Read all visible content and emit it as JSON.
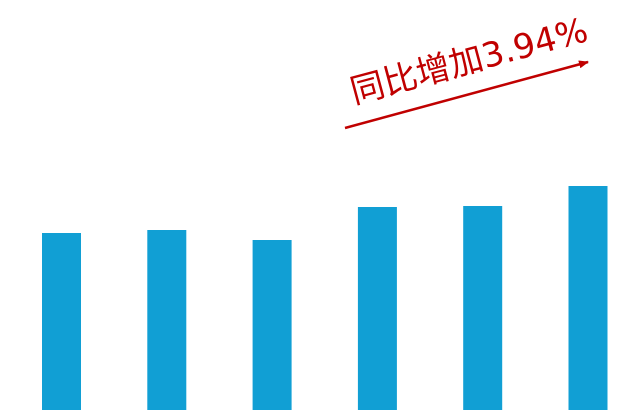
{
  "chart_data": {
    "type": "bar",
    "annotation": "同比增加3.94%",
    "annotation_color": "#c00000",
    "values": [
      177,
      180,
      170,
      203,
      204,
      224
    ],
    "color": "#119fd4",
    "ylim": [
      0,
      410
    ]
  }
}
